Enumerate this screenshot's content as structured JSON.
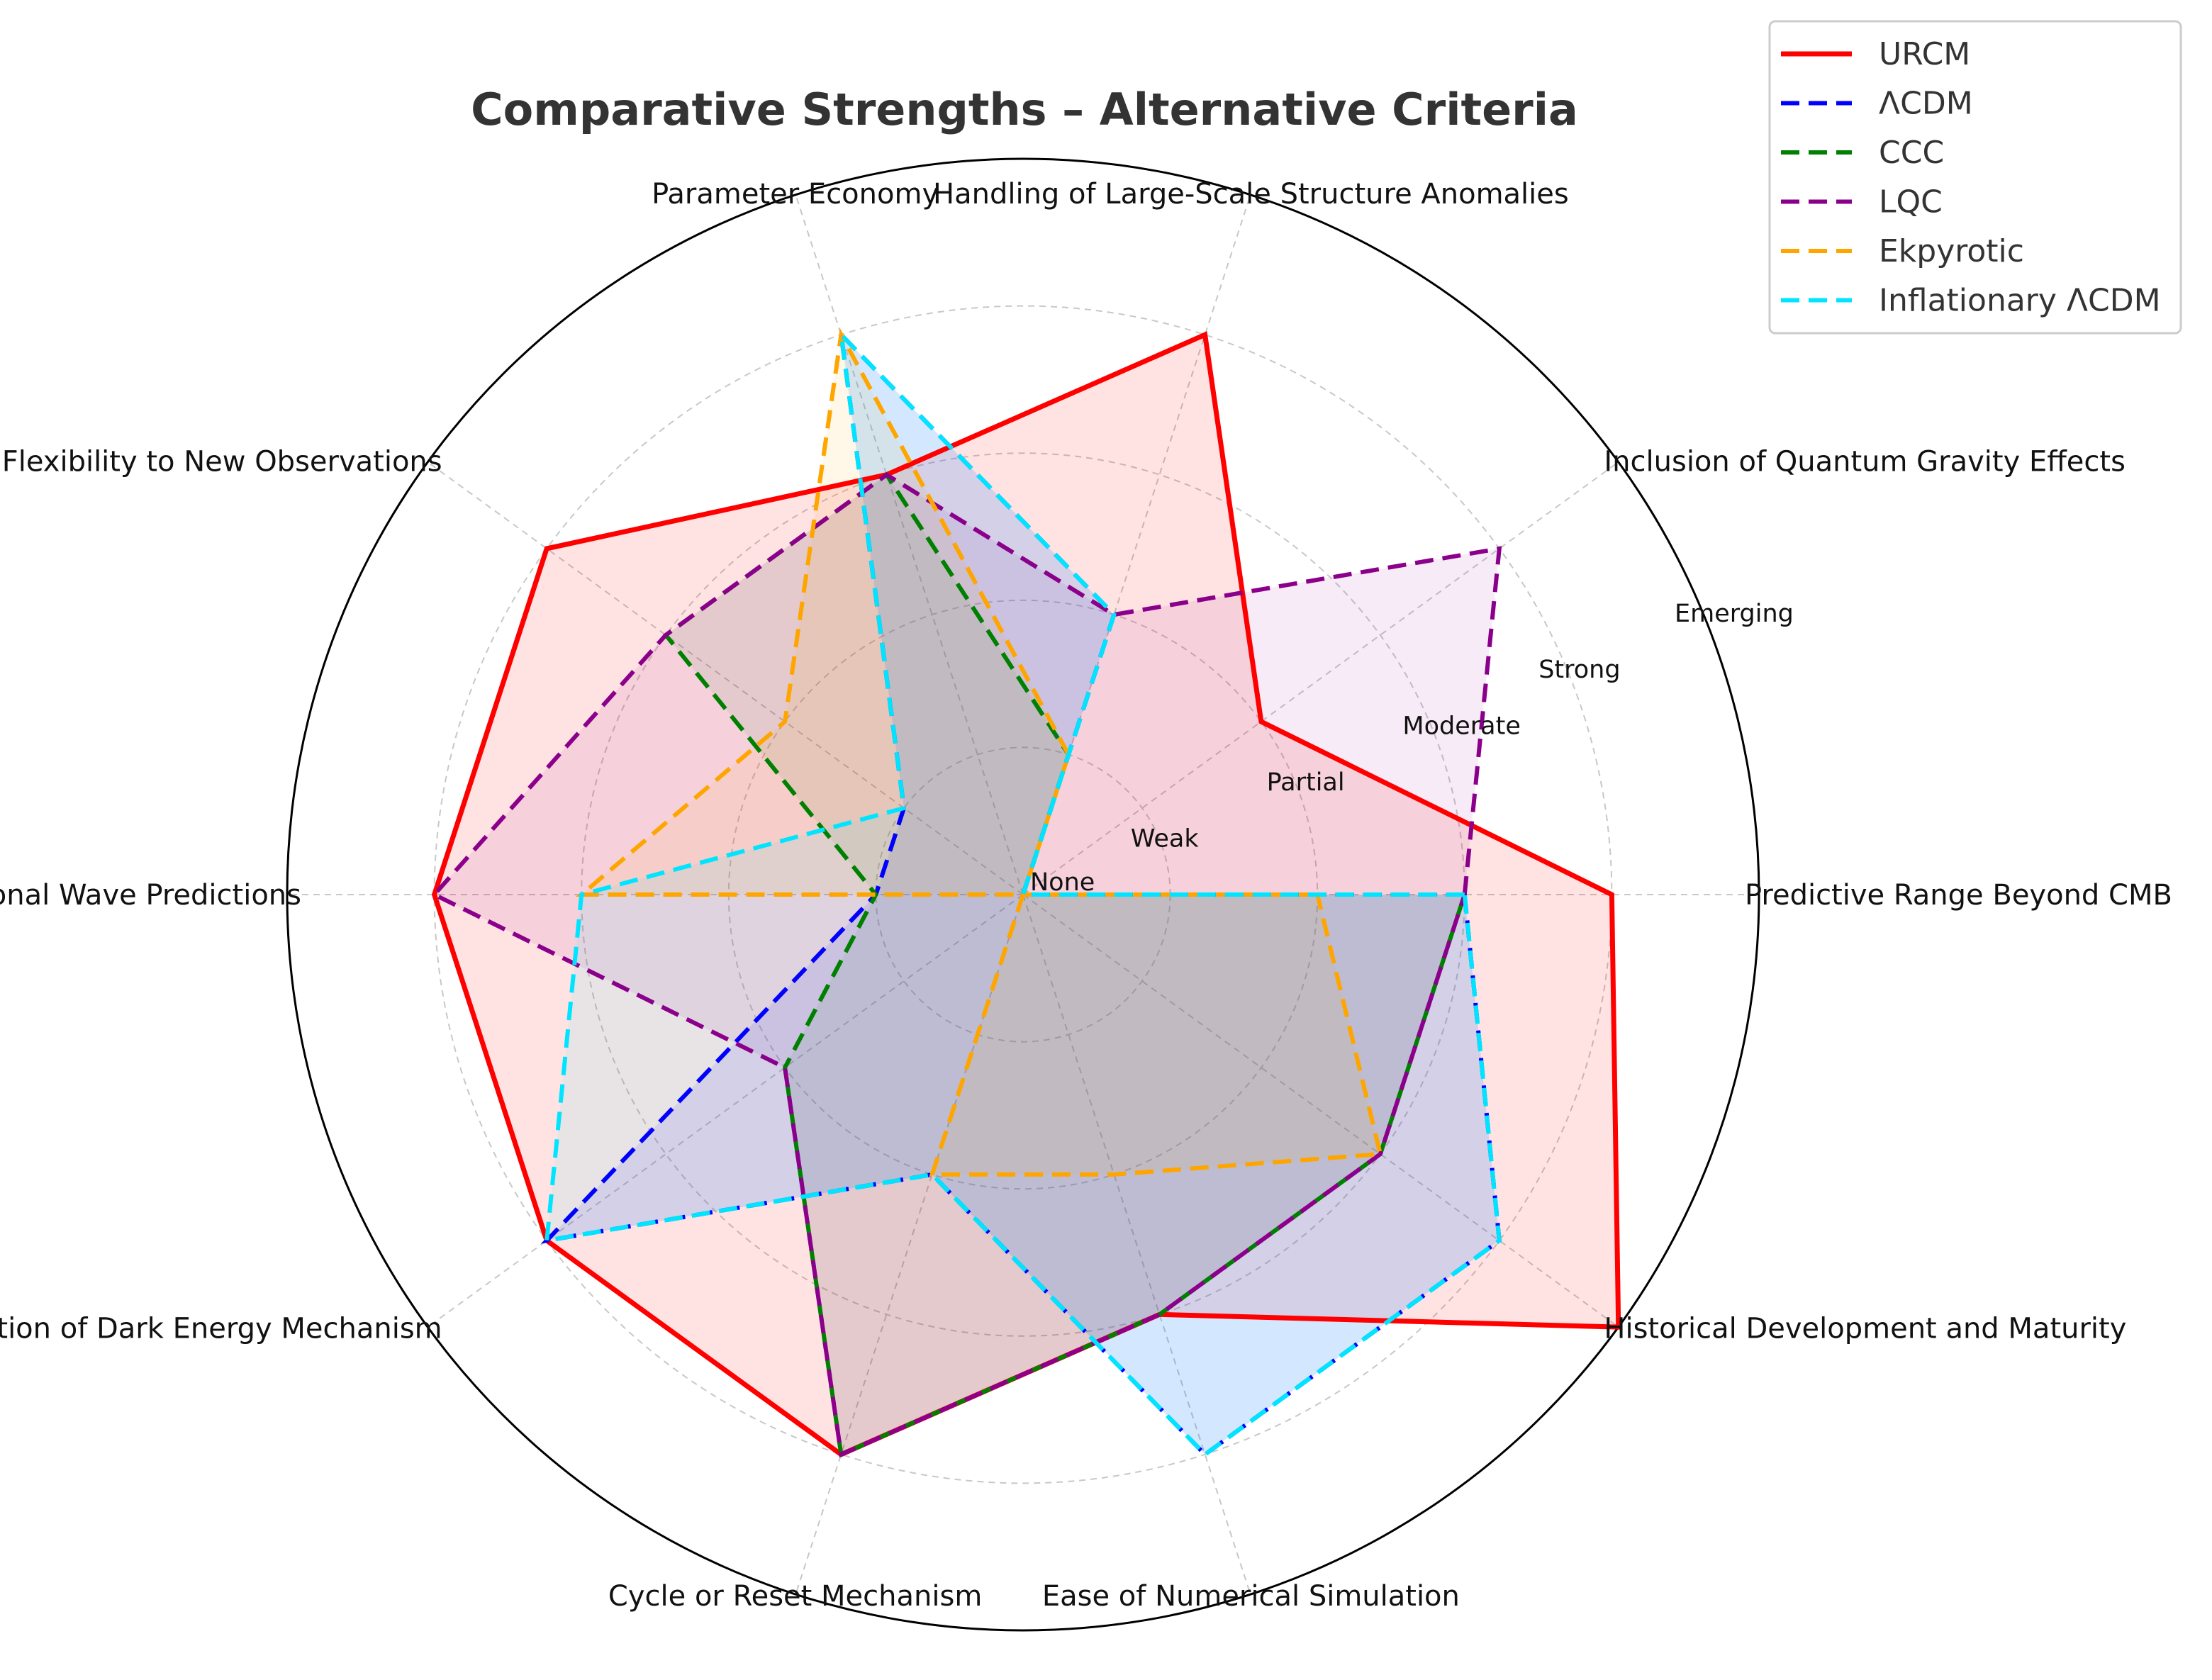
{
  "chart_data": {
    "type": "radar",
    "title": "Comparative Strengths – Alternative Criteria",
    "levels": [
      "None",
      "Weak",
      "Partial",
      "Moderate",
      "Strong",
      "Emerging"
    ],
    "rmax": 5,
    "grid": true,
    "legend_position": "top-right",
    "categories": [
      "Predictive Range Beyond CMB",
      "Inclusion of Quantum Gravity Effects",
      "Handling of Large-Scale Structure Anomalies",
      "Parameter Economy",
      "Flexibility to New Observations",
      "Gravitational Wave Predictions",
      "Incorporation of Dark Energy Mechanism",
      "Cycle or Reset Mechanism",
      "Ease of Numerical Simulation",
      "Historical Development and Maturity"
    ],
    "series": [
      {
        "name": "URCM",
        "color": "#ff0000",
        "line": "solid",
        "fill": "#ff0000",
        "fill_opacity": 0.11,
        "values": [
          4,
          2,
          4,
          3,
          4,
          4,
          4,
          4,
          3,
          5
        ]
      },
      {
        "name": "ΛCDM",
        "color": "#0000ff",
        "line": "dashed",
        "fill": "#0000ff",
        "fill_opacity": 0.09,
        "values": [
          3,
          0,
          2,
          4,
          1,
          1,
          4,
          2,
          4,
          4
        ]
      },
      {
        "name": "CCC",
        "color": "#008000",
        "line": "dashed",
        "fill": "#008000",
        "fill_opacity": 0.07,
        "values": [
          3,
          0,
          1,
          3,
          3,
          1,
          2,
          4,
          3,
          3
        ]
      },
      {
        "name": "LQC",
        "color": "#8b008b",
        "line": "dashed",
        "fill": "#8b008b",
        "fill_opacity": 0.08,
        "values": [
          3,
          4,
          2,
          3,
          3,
          4,
          2,
          4,
          3,
          3
        ]
      },
      {
        "name": "Ekpyrotic",
        "color": "#ffa500",
        "line": "dashed",
        "fill": "#ffa500",
        "fill_opacity": 0.09,
        "values": [
          2,
          0,
          1,
          4,
          2,
          3,
          0,
          2,
          2,
          3
        ]
      },
      {
        "name": "Inflationary ΛCDM",
        "color": "#00e5ff",
        "line": "dashed",
        "fill": "#00e5ff",
        "fill_opacity": 0.09,
        "values": [
          3,
          0,
          2,
          4,
          1,
          3,
          4,
          2,
          4,
          4
        ]
      }
    ]
  }
}
